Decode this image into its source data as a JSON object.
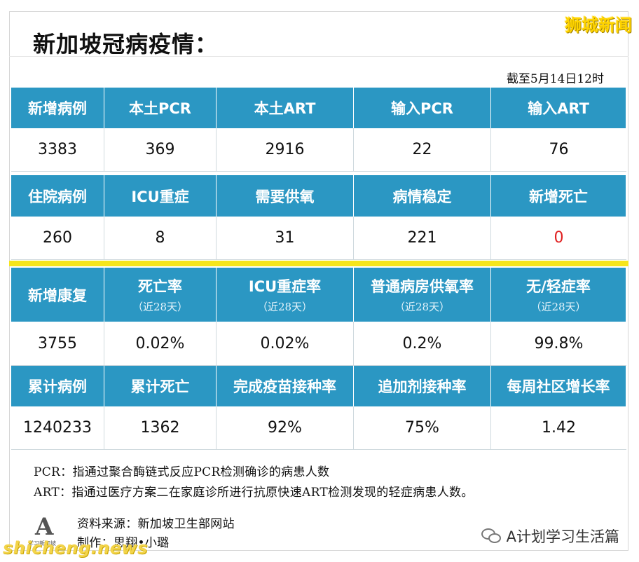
{
  "title": "新加坡冠病疫情：",
  "brand": "狮城新闻",
  "as_of": "截至5月14日12时",
  "section1": {
    "headers": [
      "新增病例",
      "本土PCR",
      "本土ART",
      "输入PCR",
      "输入ART"
    ],
    "values": [
      "3383",
      "369",
      "2916",
      "22",
      "76"
    ]
  },
  "section2": {
    "headers": [
      "住院病例",
      "ICU重症",
      "需要供氧",
      "病情稳定",
      "新增死亡"
    ],
    "values": [
      "260",
      "8",
      "31",
      "221",
      "0"
    ]
  },
  "section3": {
    "headers": [
      "新增康复",
      "死亡率",
      "ICU重症率",
      "普通病房供氧率",
      "无/轻症率"
    ],
    "subs": [
      "",
      "（近28天）",
      "（近28天）",
      "（近28天）",
      "（近28天）"
    ],
    "values": [
      "3755",
      "0.02%",
      "0.02%",
      "0.2%",
      "99.8%"
    ]
  },
  "section4": {
    "headers": [
      "累计病例",
      "累计死亡",
      "完成疫苗接种率",
      "追加剂接种率",
      "每周社区增长率"
    ],
    "values": [
      "1240233",
      "1362",
      "92%",
      "75%",
      "1.42"
    ]
  },
  "notes": {
    "pcr": "PCR：指通过聚合酶链式反应PCR检测确诊的病患人数",
    "art": "ART：指通过医疗方案二在家庭诊所进行抗原快速ART检测发现的轻症病患人数。"
  },
  "credits": {
    "source": "资料来源：新加坡卫生部网站",
    "author": "制作：思翔•小璐",
    "logo_letter": "A",
    "logo_caption": "学习新加坡"
  },
  "wechat_account": "A计划学习生活篇",
  "watermark": "shicheng.news",
  "colors": {
    "header_blue": "#2b97c3",
    "divider_yellow": "#f6e51b",
    "death_red": "#e02020",
    "brand_yellow": "#ffd400"
  }
}
